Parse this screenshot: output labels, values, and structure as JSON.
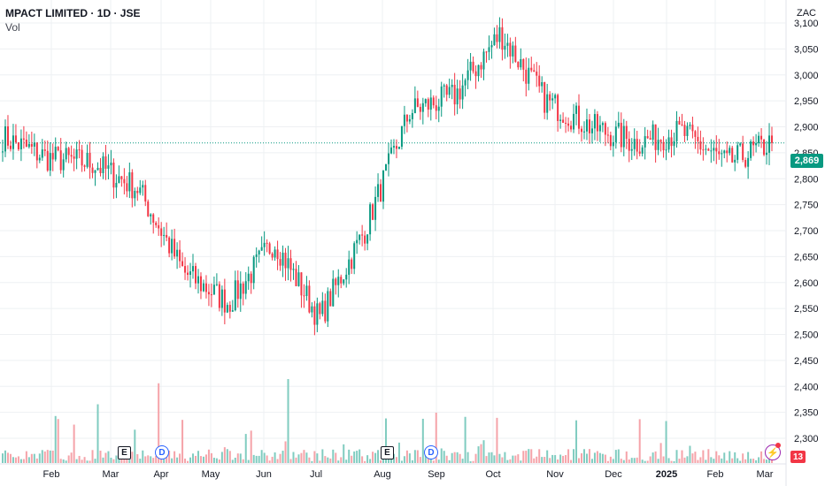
{
  "header": {
    "title": "MPACT LIMITED · 1D · JSE",
    "indicator": "Vol"
  },
  "currency": "ZAC",
  "last_price_label": "2,869",
  "volume_badge": "13",
  "markers": {
    "earnings": "E",
    "dividend": "D",
    "flash": "⚡"
  },
  "colors": {
    "up": "#089981",
    "down": "#f23645",
    "up_vol": "#80ccc0",
    "down_vol": "#f5a3a9",
    "grid": "#eef0f3"
  },
  "chart_data": {
    "type": "candlestick",
    "title": "MPACT LIMITED · 1D · JSE",
    "ylabel": "",
    "y_ticks": [
      2300,
      2350,
      2400,
      2450,
      2500,
      2550,
      2600,
      2650,
      2700,
      2750,
      2800,
      2850,
      2900,
      2950,
      3000,
      3050,
      3100
    ],
    "y_tick_labels": [
      "2,300",
      "2,350",
      "2,400",
      "2,450",
      "2,500",
      "2,550",
      "2,600",
      "2,650",
      "2,700",
      "2,750",
      "2,800",
      "2,850",
      "2,900",
      "2,950",
      "3,000",
      "3,050",
      "3,100"
    ],
    "ylim": [
      2280,
      3125
    ],
    "x_labels": [
      "Feb",
      "Mar",
      "Apr",
      "May",
      "Jun",
      "Jul",
      "Aug",
      "Sep",
      "Oct",
      "Nov",
      "Dec",
      "2025",
      "Feb",
      "Mar"
    ],
    "last_price": 2869,
    "series": [
      {
        "name": "price",
        "anchors": [
          {
            "month": "Jan",
            "close": 2880
          },
          {
            "month": "Feb",
            "close": 2840
          },
          {
            "month": "Mar",
            "close": 2830
          },
          {
            "month": "Mar-late",
            "close": 2780
          },
          {
            "month": "Apr",
            "close": 2620
          },
          {
            "month": "May",
            "close": 2560
          },
          {
            "month": "Jun",
            "close": 2680
          },
          {
            "month": "Jun-late",
            "close": 2530
          },
          {
            "month": "Jul",
            "close": 2700
          },
          {
            "month": "Jul-late",
            "close": 2930
          },
          {
            "month": "Aug",
            "close": 2960
          },
          {
            "month": "Sep",
            "close": 3080
          },
          {
            "month": "Oct",
            "close": 2950
          },
          {
            "month": "Nov",
            "close": 2900
          },
          {
            "month": "Dec",
            "close": 2870
          },
          {
            "month": "2025",
            "close": 2890
          },
          {
            "month": "Feb",
            "close": 2830
          },
          {
            "month": "Mar",
            "close": 2869
          }
        ]
      },
      {
        "name": "Vol",
        "spikes": [
          {
            "month": "Mar",
            "relative": 0.7
          },
          {
            "month": "Apr",
            "relative": 0.95
          },
          {
            "month": "Jun-late",
            "relative": 1.0
          },
          {
            "month": "Sep",
            "relative": 0.6
          },
          {
            "month": "Oct",
            "relative": 0.55
          },
          {
            "month": "2025",
            "relative": 0.5
          }
        ]
      }
    ]
  }
}
